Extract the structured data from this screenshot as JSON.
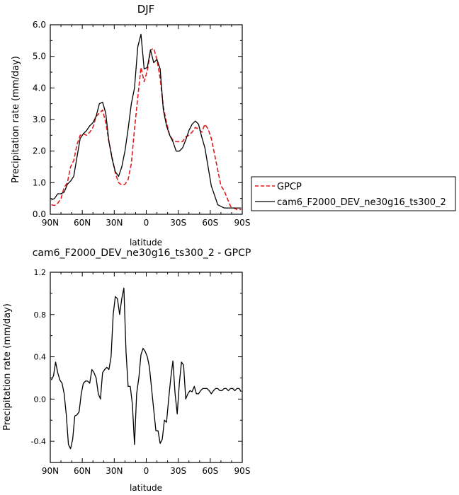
{
  "chart_data": [
    {
      "type": "line",
      "title": "DJF",
      "xlabel": "latitude",
      "ylabel": "Precipitation rate (mm/day)",
      "xlim": [
        -90,
        90
      ],
      "ylim": [
        0,
        6
      ],
      "x_ticks": [
        -90,
        -60,
        -30,
        0,
        30,
        60,
        90
      ],
      "x_tick_labels": [
        "90N",
        "60N",
        "30N",
        "0",
        "30S",
        "60S",
        "90S"
      ],
      "y_ticks": [
        0,
        1,
        2,
        3,
        4,
        5,
        6
      ],
      "y_tick_labels": [
        "0.0",
        "1.0",
        "2.0",
        "3.0",
        "4.0",
        "5.0",
        "6.0"
      ],
      "legend": {
        "placement": "right-outside"
      },
      "series": [
        {
          "name": "GPCP",
          "color": "#e41a1c",
          "dash": "dashed",
          "x": [
            -89,
            -86,
            -83,
            -80,
            -77,
            -74,
            -71,
            -68,
            -65,
            -62,
            -59,
            -56,
            -53,
            -50,
            -47,
            -44,
            -41,
            -38,
            -35,
            -32,
            -29,
            -26,
            -23,
            -20,
            -17,
            -14,
            -11,
            -8,
            -5,
            -2,
            1,
            4,
            7,
            10,
            13,
            16,
            19,
            22,
            25,
            28,
            31,
            34,
            37,
            40,
            43,
            46,
            49,
            52,
            55,
            58,
            61,
            64,
            67,
            70,
            73,
            76,
            79,
            82,
            85,
            88,
            89
          ],
          "y": [
            0.3,
            0.28,
            0.35,
            0.5,
            0.85,
            1.0,
            1.5,
            1.7,
            2.2,
            2.5,
            2.55,
            2.5,
            2.6,
            2.75,
            3.1,
            3.2,
            3.3,
            2.9,
            2.3,
            1.8,
            1.3,
            1.0,
            0.93,
            0.95,
            1.1,
            1.6,
            2.7,
            3.7,
            4.65,
            4.2,
            4.55,
            5.2,
            5.25,
            4.9,
            4.3,
            3.4,
            2.9,
            2.5,
            2.35,
            2.3,
            2.3,
            2.3,
            2.45,
            2.5,
            2.6,
            2.75,
            2.7,
            2.6,
            2.85,
            2.7,
            2.4,
            1.9,
            1.4,
            0.9,
            0.75,
            0.5,
            0.25,
            0.2,
            0.15,
            0.15,
            0.15
          ]
        },
        {
          "name": "cam6_F2000_DEV_ne30g16_ts300_2",
          "color": "#000000",
          "dash": "solid",
          "x": [
            -89,
            -86,
            -83,
            -80,
            -77,
            -74,
            -71,
            -68,
            -65,
            -62,
            -59,
            -56,
            -53,
            -50,
            -47,
            -44,
            -41,
            -38,
            -35,
            -32,
            -29,
            -26,
            -23,
            -20,
            -17,
            -14,
            -11,
            -8,
            -5,
            -2,
            1,
            4,
            7,
            10,
            13,
            16,
            19,
            22,
            25,
            28,
            31,
            34,
            37,
            40,
            43,
            46,
            49,
            52,
            55,
            58,
            61,
            64,
            67,
            70,
            73,
            76,
            79,
            82,
            85,
            88,
            89
          ],
          "y": [
            0.45,
            0.5,
            0.65,
            0.65,
            0.7,
            0.95,
            1.05,
            1.2,
            1.8,
            2.4,
            2.55,
            2.65,
            2.8,
            2.9,
            3.1,
            3.5,
            3.55,
            3.2,
            2.3,
            1.75,
            1.35,
            1.2,
            1.5,
            2.0,
            2.7,
            3.5,
            4.0,
            5.3,
            5.7,
            4.6,
            4.65,
            5.2,
            4.8,
            4.9,
            4.6,
            3.3,
            2.8,
            2.5,
            2.3,
            2.0,
            2.0,
            2.1,
            2.35,
            2.65,
            2.85,
            2.95,
            2.85,
            2.45,
            2.1,
            1.5,
            0.9,
            0.6,
            0.3,
            0.25,
            0.2,
            0.2,
            0.2,
            0.2,
            0.2,
            0.2,
            0.2
          ]
        }
      ]
    },
    {
      "type": "line",
      "title": "cam6_F2000_DEV_ne30g16_ts300_2 - GPCP",
      "xlabel": "latitude",
      "ylabel": "Precipitation rate (mm/day)",
      "xlim": [
        -90,
        90
      ],
      "ylim": [
        -0.6,
        1.2
      ],
      "x_ticks": [
        -90,
        -60,
        -30,
        0,
        30,
        60,
        90
      ],
      "x_tick_labels": [
        "90N",
        "60N",
        "30N",
        "0",
        "30S",
        "60S",
        "90S"
      ],
      "y_ticks": [
        -0.4,
        0,
        0.4,
        0.8,
        1.2
      ],
      "y_tick_labels": [
        "-0.4",
        "0.0",
        "0.4",
        "0.8",
        "1.2"
      ],
      "series": [
        {
          "color": "#000000",
          "dash": "solid",
          "x": [
            -89,
            -87,
            -85,
            -83,
            -81,
            -79,
            -77,
            -75,
            -73,
            -71,
            -69,
            -67,
            -65,
            -63,
            -61,
            -59,
            -57,
            -55,
            -53,
            -51,
            -49,
            -47,
            -45,
            -43,
            -41,
            -39,
            -37,
            -35,
            -33,
            -31,
            -29,
            -27,
            -25,
            -23,
            -21,
            -19,
            -17,
            -15,
            -13,
            -11,
            -9,
            -7,
            -5,
            -3,
            -1,
            1,
            3,
            5,
            7,
            9,
            11,
            13,
            15,
            17,
            19,
            21,
            23,
            25,
            27,
            29,
            31,
            33,
            35,
            37,
            39,
            41,
            43,
            45,
            47,
            49,
            51,
            53,
            55,
            57,
            59,
            61,
            63,
            65,
            67,
            69,
            71,
            73,
            75,
            77,
            79,
            81,
            83,
            85,
            87,
            89
          ],
          "y": [
            0.18,
            0.22,
            0.35,
            0.25,
            0.18,
            0.15,
            0.05,
            -0.15,
            -0.43,
            -0.47,
            -0.38,
            -0.16,
            -0.15,
            -0.12,
            0.05,
            0.15,
            0.17,
            0.17,
            0.15,
            0.28,
            0.25,
            0.2,
            0.05,
            0.0,
            0.25,
            0.28,
            0.3,
            0.28,
            0.4,
            0.8,
            0.97,
            0.95,
            0.8,
            0.95,
            1.05,
            0.45,
            0.12,
            0.12,
            -0.05,
            -0.43,
            0.05,
            0.2,
            0.42,
            0.48,
            0.45,
            0.4,
            0.3,
            0.1,
            -0.1,
            -0.3,
            -0.3,
            -0.42,
            -0.38,
            -0.2,
            -0.22,
            0.0,
            0.2,
            0.36,
            0.05,
            -0.14,
            0.15,
            0.35,
            0.32,
            0.0,
            0.05,
            0.08,
            0.07,
            0.12,
            0.05,
            0.05,
            0.08,
            0.1,
            0.1,
            0.1,
            0.08,
            0.05,
            0.08,
            0.1,
            0.1,
            0.08,
            0.08,
            0.1,
            0.1,
            0.08,
            0.1,
            0.1,
            0.08,
            0.1,
            0.1,
            0.07
          ]
        }
      ]
    }
  ]
}
